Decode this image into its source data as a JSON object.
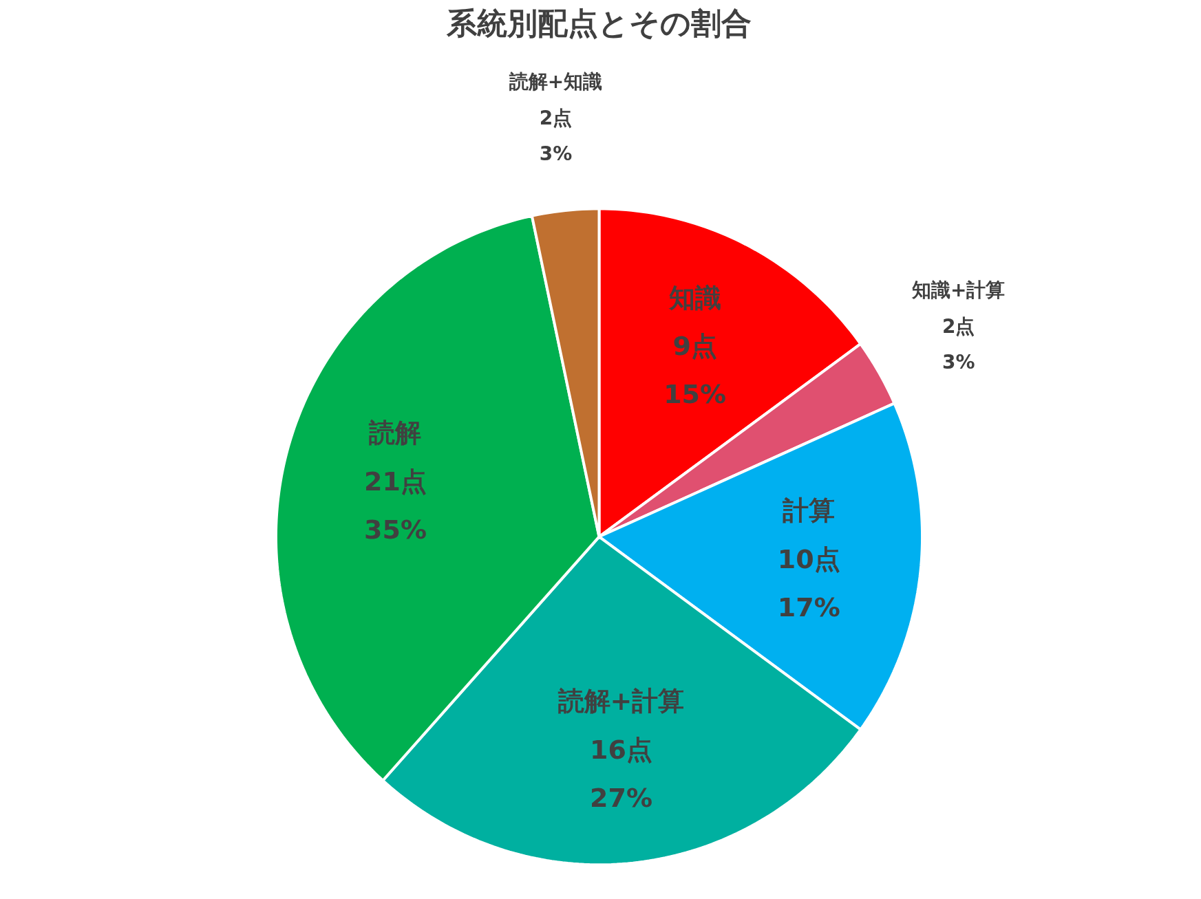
{
  "chart_data": {
    "type": "pie",
    "title": "系統別配点とその割合",
    "categories": [
      "知識",
      "知識+計算",
      "計算",
      "読解+計算",
      "読解",
      "読解+知識"
    ],
    "values": [
      9,
      2,
      10,
      16,
      21,
      2
    ],
    "colors": [
      "#ff0000",
      "#e05070",
      "#00b0f0",
      "#00b0a0",
      "#00b050",
      "#c07030"
    ],
    "value_labels": [
      "9点\n15%",
      "2点\n3%",
      "10点\n17%",
      "16点\n27%",
      "21点\n35%",
      "2点\n3%"
    ]
  }
}
